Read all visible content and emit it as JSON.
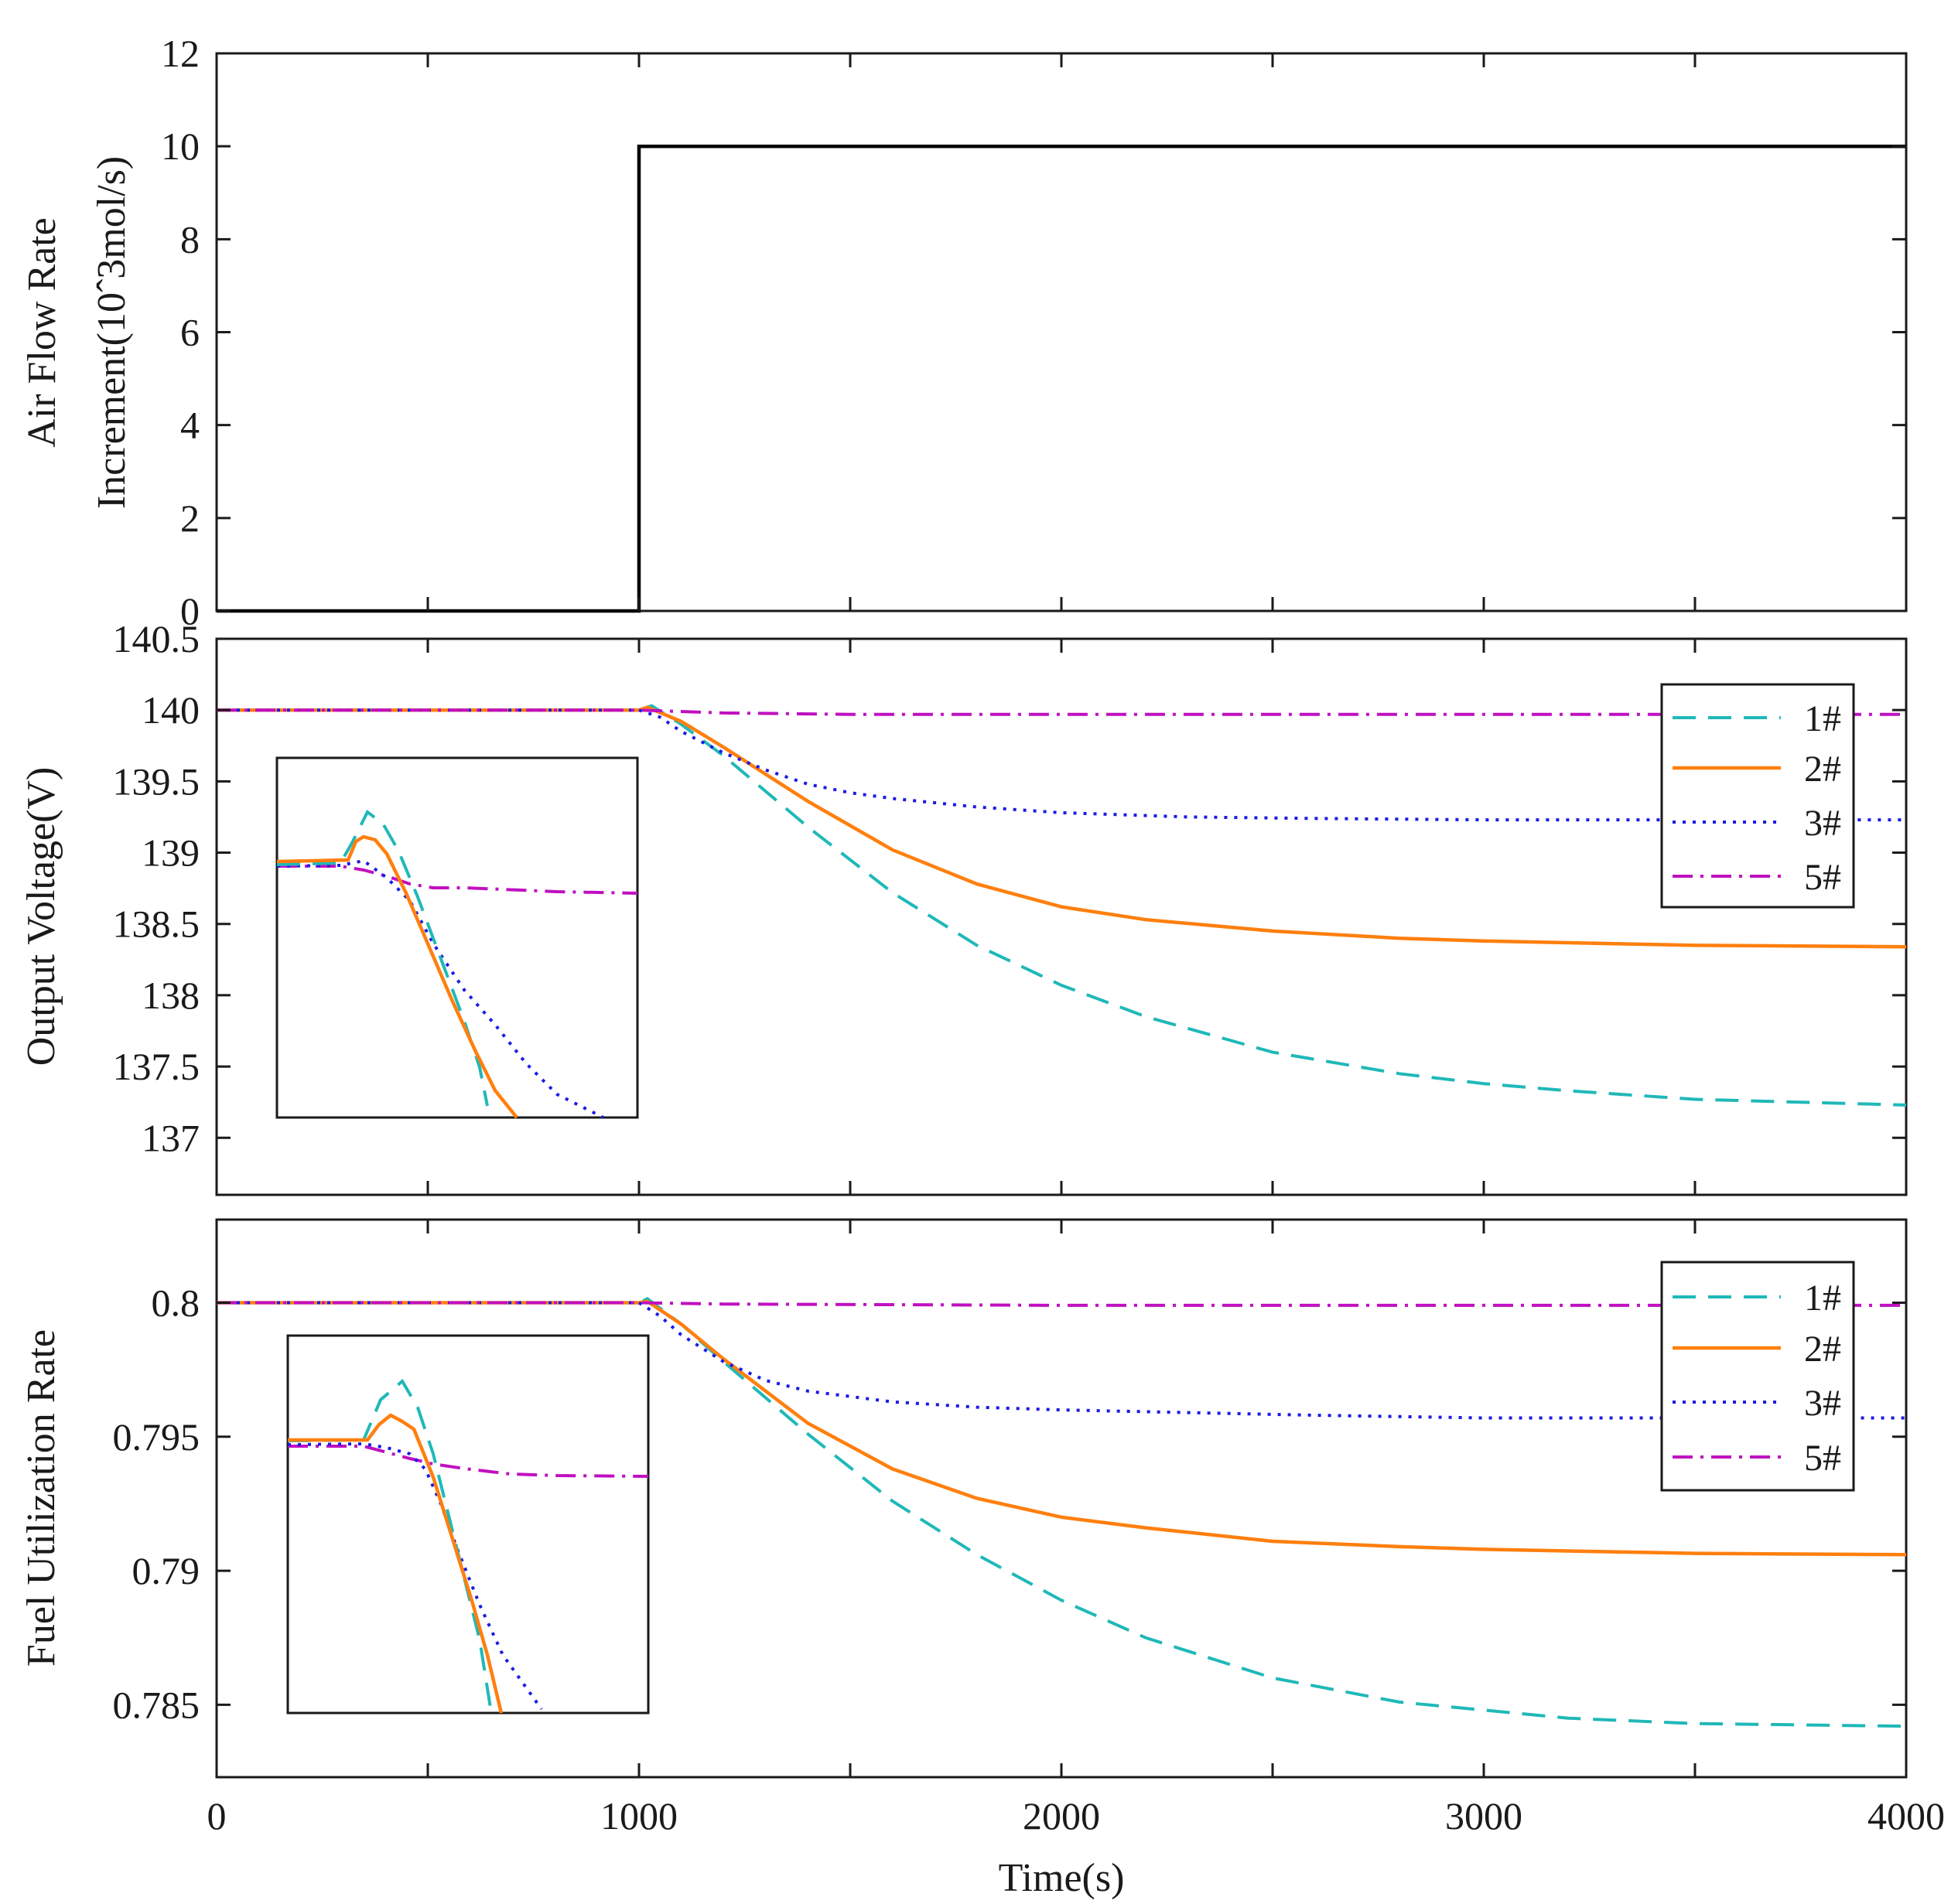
{
  "xaxis": {
    "label": "Time(s)",
    "xlim": [
      0,
      4000
    ],
    "ticks": [
      0,
      1000,
      2000,
      3000,
      4000
    ],
    "tick_labels": [
      "0",
      "1000",
      "2000",
      "3000",
      "4000"
    ]
  },
  "legend": {
    "entries": [
      "1#",
      "2#",
      "3#",
      "5#"
    ],
    "placement": "top-right"
  },
  "colors": {
    "1#": "#20b8b8",
    "2#": "#ff7f0e",
    "3#": "#1a1ae6",
    "5#": "#c010c0",
    "step": "#000000"
  },
  "chart_data": [
    {
      "type": "line",
      "ylabel_line1": "Air Flow Rate",
      "ylabel_line2": "Increment(10ˆ3mol/s)",
      "xlim": [
        0,
        4000
      ],
      "ylim": [
        0,
        12
      ],
      "yticks": [
        0,
        2,
        4,
        6,
        8,
        10,
        12
      ],
      "ytick_labels": [
        "0",
        "2",
        "4",
        "6",
        "8",
        "10",
        "12"
      ],
      "series": [
        {
          "name": "step",
          "x": [
            0,
            1000,
            1000,
            4000
          ],
          "y": [
            0,
            0,
            10,
            10
          ]
        }
      ]
    },
    {
      "type": "line",
      "ylabel": "Output Voltage(V)",
      "xlim": [
        0,
        4000
      ],
      "ylim": [
        136.6,
        140.5
      ],
      "yticks": [
        137,
        137.5,
        138,
        138.5,
        139,
        139.5,
        140,
        140.5
      ],
      "ytick_labels": [
        "137",
        "137.5",
        "138",
        "138.5",
        "139",
        "139.5",
        "140",
        "140.5"
      ],
      "series": [
        {
          "name": "1#",
          "x": [
            0,
            1000,
            1030,
            1100,
            1200,
            1400,
            1600,
            1800,
            2000,
            2200,
            2500,
            2800,
            3000,
            3200,
            3500,
            4000
          ],
          "y": [
            140.0,
            140.0,
            140.03,
            139.9,
            139.68,
            139.18,
            138.72,
            138.35,
            138.07,
            137.85,
            137.6,
            137.45,
            137.38,
            137.33,
            137.27,
            137.23
          ]
        },
        {
          "name": "2#",
          "x": [
            0,
            1000,
            1020,
            1100,
            1200,
            1400,
            1600,
            1800,
            2000,
            2200,
            2500,
            2800,
            3000,
            3500,
            4000
          ],
          "y": [
            140.0,
            140.0,
            140.02,
            139.92,
            139.74,
            139.36,
            139.02,
            138.78,
            138.62,
            138.53,
            138.45,
            138.4,
            138.38,
            138.35,
            138.34
          ]
        },
        {
          "name": "3#",
          "x": [
            0,
            1000,
            1050,
            1100,
            1200,
            1300,
            1400,
            1500,
            1600,
            1800,
            2000,
            2300,
            2600,
            3000,
            4000
          ],
          "y": [
            140.0,
            140.0,
            139.95,
            139.85,
            139.7,
            139.58,
            139.48,
            139.42,
            139.38,
            139.32,
            139.28,
            139.25,
            139.24,
            139.23,
            139.23
          ]
        },
        {
          "name": "5#",
          "x": [
            0,
            1000,
            1200,
            1500,
            2000,
            3000,
            4000
          ],
          "y": [
            140.0,
            140.0,
            139.98,
            139.97,
            139.97,
            139.97,
            139.97
          ]
        }
      ]
    },
    {
      "type": "line",
      "ylabel": "Fuel Utilization Rate",
      "xlim": [
        0,
        4000
      ],
      "ylim": [
        0.7823,
        0.8031
      ],
      "yticks": [
        0.785,
        0.79,
        0.795,
        0.8
      ],
      "ytick_labels": [
        "0.785",
        "0.79",
        "0.795",
        "0.8"
      ],
      "series": [
        {
          "name": "1#",
          "x": [
            0,
            1000,
            1020,
            1100,
            1200,
            1400,
            1600,
            1800,
            2000,
            2200,
            2500,
            2800,
            3000,
            3200,
            3500,
            4000
          ],
          "y": [
            0.8,
            0.8,
            0.80015,
            0.7992,
            0.7978,
            0.7951,
            0.7926,
            0.7906,
            0.7889,
            0.7875,
            0.786,
            0.7851,
            0.7848,
            0.7845,
            0.7843,
            0.7842
          ]
        },
        {
          "name": "2#",
          "x": [
            0,
            1000,
            1020,
            1100,
            1200,
            1400,
            1600,
            1800,
            2000,
            2200,
            2500,
            2800,
            3000,
            3500,
            4000
          ],
          "y": [
            0.8,
            0.8,
            0.80005,
            0.7992,
            0.7979,
            0.7955,
            0.7938,
            0.7927,
            0.792,
            0.7916,
            0.7911,
            0.7909,
            0.7908,
            0.79065,
            0.7906
          ]
        },
        {
          "name": "3#",
          "x": [
            0,
            1000,
            1050,
            1100,
            1200,
            1300,
            1400,
            1600,
            1800,
            2000,
            2300,
            2600,
            3000,
            4000
          ],
          "y": [
            0.8,
            0.8,
            0.7995,
            0.7988,
            0.7978,
            0.7971,
            0.7967,
            0.7963,
            0.7961,
            0.796,
            0.7959,
            0.7958,
            0.7957,
            0.7957
          ]
        },
        {
          "name": "5#",
          "x": [
            0,
            1000,
            1200,
            2000,
            3000,
            4000
          ],
          "y": [
            0.8,
            0.8,
            0.79995,
            0.7999,
            0.7999,
            0.7999
          ]
        }
      ]
    }
  ]
}
